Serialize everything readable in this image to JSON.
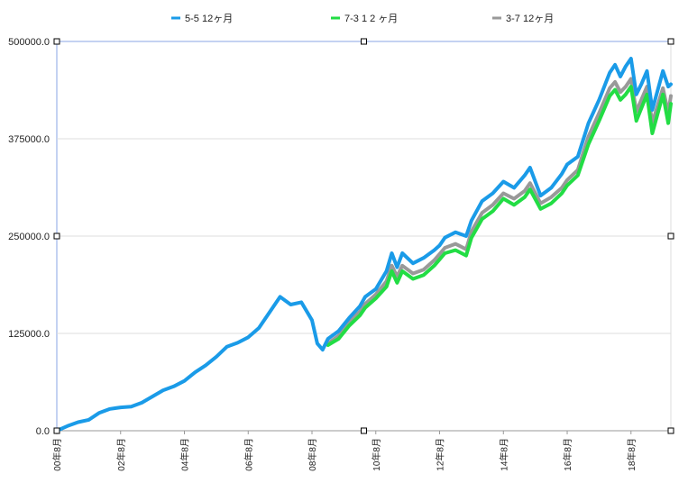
{
  "chart_data": {
    "type": "line",
    "title": "",
    "xlabel": "",
    "ylabel": "",
    "ylim": [
      0,
      500000
    ],
    "yticks": [
      "0.0",
      "125000.0",
      "250000.0",
      "375000.0",
      "500000.0"
    ],
    "x_start": "2000-08",
    "x_end": "2019-11",
    "xticks": [
      {
        "date": "2000-08",
        "label": "00年8月"
      },
      {
        "date": "2002-08",
        "label": "02年8月"
      },
      {
        "date": "2004-08",
        "label": "04年8月"
      },
      {
        "date": "2006-08",
        "label": "06年8月"
      },
      {
        "date": "2008-08",
        "label": "08年8月"
      },
      {
        "date": "2010-08",
        "label": "10年8月"
      },
      {
        "date": "2012-08",
        "label": "12年8月"
      },
      {
        "date": "2014-08",
        "label": "14年8月"
      },
      {
        "date": "2016-08",
        "label": "16年8月"
      },
      {
        "date": "2018-08",
        "label": "18年8月"
      }
    ],
    "grid": true,
    "legend_position": "top",
    "series": [
      {
        "name": "5-5 12ヶ月",
        "color": "#1a9be8",
        "points": [
          [
            "2000-08",
            0
          ],
          [
            "2000-12",
            6000
          ],
          [
            "2001-04",
            11000
          ],
          [
            "2001-08",
            14000
          ],
          [
            "2001-12",
            23000
          ],
          [
            "2002-04",
            28000
          ],
          [
            "2002-08",
            30000
          ],
          [
            "2002-12",
            31000
          ],
          [
            "2003-04",
            36000
          ],
          [
            "2003-08",
            44000
          ],
          [
            "2003-12",
            52000
          ],
          [
            "2004-04",
            57000
          ],
          [
            "2004-08",
            64000
          ],
          [
            "2004-12",
            75000
          ],
          [
            "2005-04",
            84000
          ],
          [
            "2005-08",
            95000
          ],
          [
            "2005-12",
            108000
          ],
          [
            "2006-04",
            113000
          ],
          [
            "2006-08",
            120000
          ],
          [
            "2006-12",
            132000
          ],
          [
            "2007-04",
            152000
          ],
          [
            "2007-08",
            172000
          ],
          [
            "2007-12",
            162000
          ],
          [
            "2008-04",
            165000
          ],
          [
            "2008-08",
            142000
          ],
          [
            "2008-10",
            112000
          ],
          [
            "2008-12",
            104000
          ],
          [
            "2009-02",
            118000
          ],
          [
            "2009-06",
            128000
          ],
          [
            "2009-10",
            145000
          ],
          [
            "2010-02",
            160000
          ],
          [
            "2010-04",
            172000
          ],
          [
            "2010-08",
            182000
          ],
          [
            "2010-12",
            205000
          ],
          [
            "2011-02",
            228000
          ],
          [
            "2011-04",
            210000
          ],
          [
            "2011-06",
            228000
          ],
          [
            "2011-10",
            215000
          ],
          [
            "2012-02",
            222000
          ],
          [
            "2012-06",
            232000
          ],
          [
            "2012-08",
            238000
          ],
          [
            "2012-10",
            248000
          ],
          [
            "2013-02",
            255000
          ],
          [
            "2013-06",
            250000
          ],
          [
            "2013-08",
            270000
          ],
          [
            "2013-12",
            295000
          ],
          [
            "2014-04",
            305000
          ],
          [
            "2014-08",
            320000
          ],
          [
            "2014-12",
            312000
          ],
          [
            "2015-04",
            328000
          ],
          [
            "2015-06",
            338000
          ],
          [
            "2015-10",
            302000
          ],
          [
            "2016-02",
            312000
          ],
          [
            "2016-06",
            330000
          ],
          [
            "2016-08",
            342000
          ],
          [
            "2016-12",
            352000
          ],
          [
            "2017-04",
            395000
          ],
          [
            "2017-08",
            425000
          ],
          [
            "2017-12",
            460000
          ],
          [
            "2018-02",
            470000
          ],
          [
            "2018-04",
            455000
          ],
          [
            "2018-06",
            468000
          ],
          [
            "2018-08",
            478000
          ],
          [
            "2018-10",
            432000
          ],
          [
            "2018-12",
            446000
          ],
          [
            "2019-02",
            462000
          ],
          [
            "2019-04",
            412000
          ],
          [
            "2019-08",
            462000
          ],
          [
            "2019-10",
            442000
          ],
          [
            "2019-11",
            445000
          ]
        ]
      },
      {
        "name": "7-3 1 2 ヶ月",
        "color": "#22dd44",
        "points": [
          [
            "2009-02",
            110000
          ],
          [
            "2009-06",
            118000
          ],
          [
            "2009-10",
            135000
          ],
          [
            "2010-02",
            148000
          ],
          [
            "2010-04",
            158000
          ],
          [
            "2010-08",
            170000
          ],
          [
            "2010-12",
            185000
          ],
          [
            "2011-02",
            205000
          ],
          [
            "2011-04",
            190000
          ],
          [
            "2011-06",
            205000
          ],
          [
            "2011-10",
            195000
          ],
          [
            "2012-02",
            200000
          ],
          [
            "2012-06",
            212000
          ],
          [
            "2012-08",
            220000
          ],
          [
            "2012-10",
            228000
          ],
          [
            "2013-02",
            232000
          ],
          [
            "2013-06",
            225000
          ],
          [
            "2013-08",
            248000
          ],
          [
            "2013-12",
            272000
          ],
          [
            "2014-04",
            282000
          ],
          [
            "2014-08",
            298000
          ],
          [
            "2014-12",
            290000
          ],
          [
            "2015-04",
            300000
          ],
          [
            "2015-06",
            310000
          ],
          [
            "2015-10",
            285000
          ],
          [
            "2016-02",
            292000
          ],
          [
            "2016-06",
            305000
          ],
          [
            "2016-08",
            315000
          ],
          [
            "2016-12",
            328000
          ],
          [
            "2017-04",
            368000
          ],
          [
            "2017-08",
            398000
          ],
          [
            "2017-12",
            430000
          ],
          [
            "2018-02",
            438000
          ],
          [
            "2018-04",
            425000
          ],
          [
            "2018-06",
            432000
          ],
          [
            "2018-08",
            442000
          ],
          [
            "2018-10",
            398000
          ],
          [
            "2018-12",
            415000
          ],
          [
            "2019-02",
            432000
          ],
          [
            "2019-04",
            382000
          ],
          [
            "2019-08",
            432000
          ],
          [
            "2019-10",
            395000
          ],
          [
            "2019-11",
            420000
          ]
        ]
      },
      {
        "name": "3-7 12ヶ月",
        "color": "#999999",
        "points": [
          [
            "2009-02",
            112000
          ],
          [
            "2009-06",
            122000
          ],
          [
            "2009-10",
            140000
          ],
          [
            "2010-02",
            153000
          ],
          [
            "2010-04",
            163000
          ],
          [
            "2010-08",
            175000
          ],
          [
            "2010-12",
            192000
          ],
          [
            "2011-02",
            212000
          ],
          [
            "2011-04",
            198000
          ],
          [
            "2011-06",
            212000
          ],
          [
            "2011-10",
            202000
          ],
          [
            "2012-02",
            207000
          ],
          [
            "2012-06",
            219000
          ],
          [
            "2012-08",
            227000
          ],
          [
            "2012-10",
            235000
          ],
          [
            "2013-02",
            240000
          ],
          [
            "2013-06",
            233000
          ],
          [
            "2013-08",
            256000
          ],
          [
            "2013-12",
            280000
          ],
          [
            "2014-04",
            290000
          ],
          [
            "2014-08",
            305000
          ],
          [
            "2014-12",
            298000
          ],
          [
            "2015-04",
            308000
          ],
          [
            "2015-06",
            318000
          ],
          [
            "2015-10",
            292000
          ],
          [
            "2016-02",
            300000
          ],
          [
            "2016-06",
            312000
          ],
          [
            "2016-08",
            322000
          ],
          [
            "2016-12",
            335000
          ],
          [
            "2017-04",
            378000
          ],
          [
            "2017-08",
            408000
          ],
          [
            "2017-12",
            440000
          ],
          [
            "2018-02",
            448000
          ],
          [
            "2018-04",
            435000
          ],
          [
            "2018-06",
            442000
          ],
          [
            "2018-08",
            452000
          ],
          [
            "2018-10",
            410000
          ],
          [
            "2018-12",
            426000
          ],
          [
            "2019-02",
            442000
          ],
          [
            "2019-04",
            395000
          ],
          [
            "2019-08",
            440000
          ],
          [
            "2019-10",
            408000
          ],
          [
            "2019-11",
            430000
          ]
        ]
      }
    ]
  }
}
